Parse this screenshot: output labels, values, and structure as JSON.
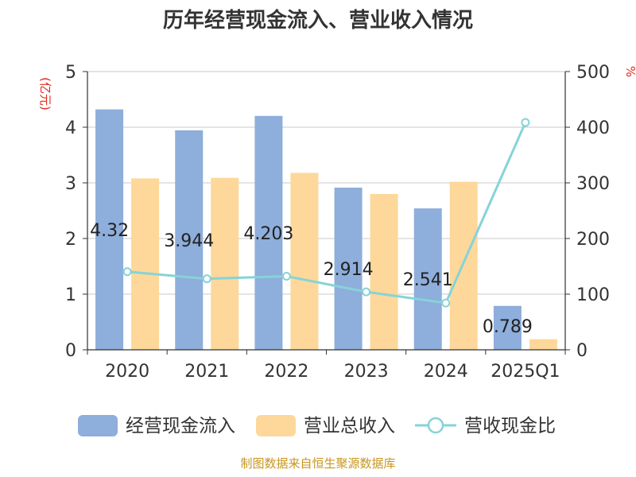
{
  "chart_data": {
    "type": "bar",
    "title": "历年经营现金流入、营业收入情况",
    "categories": [
      "2020",
      "2021",
      "2022",
      "2023",
      "2024",
      "2025Q1"
    ],
    "y_left": {
      "unit": "(亿元)",
      "ylim": [
        0,
        5
      ],
      "ticks": [
        "0",
        "1",
        "2",
        "3",
        "4",
        "5"
      ]
    },
    "y_right": {
      "unit": "%",
      "ylim": [
        0,
        500
      ],
      "ticks": [
        "0",
        "100",
        "200",
        "300",
        "400",
        "500"
      ]
    },
    "series": [
      {
        "name": "经营现金流入",
        "type": "bar",
        "axis": "left",
        "color": "#8eaedb",
        "values": [
          4.32,
          3.944,
          4.203,
          2.914,
          2.541,
          0.789
        ],
        "labels": [
          "4.32",
          "3.944",
          "4.203",
          "2.914",
          "2.541",
          "0.789"
        ]
      },
      {
        "name": "营业总收入",
        "type": "bar",
        "axis": "left",
        "color": "#fdd89a",
        "values": [
          3.08,
          3.09,
          3.18,
          2.8,
          3.02,
          0.19
        ]
      },
      {
        "name": "营收现金比",
        "type": "line",
        "axis": "right",
        "color": "#86d3d8",
        "values": [
          140.3,
          127.6,
          132.2,
          104.1,
          84.1,
          408.5
        ]
      }
    ],
    "grid": true,
    "legend_position": "bottom",
    "source": "制图数据来自恒生聚源数据库"
  }
}
